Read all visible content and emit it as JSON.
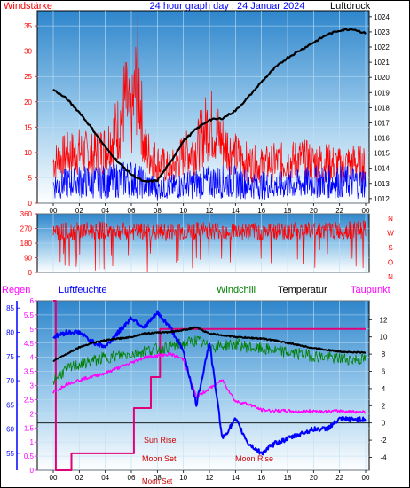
{
  "header": {
    "left": "Windstärke",
    "center": "24 hour graph day : 24 Januar 2024",
    "right": "Luftdruck"
  },
  "colors": {
    "frame": "#000000",
    "label_red": "#ff0000",
    "label_blue": "#0000ff",
    "label_magenta": "#ff00ff",
    "label_green": "#008000",
    "sky_top": "#3a8fd0",
    "sky_bottom": "#ffffff"
  },
  "legend_bottom": {
    "regen": "Regen",
    "luftfeuchte": "Luftfeuchte",
    "windchill": "Windchill",
    "temperatur": "Temperatur",
    "taupunkt": "Taupunkt"
  },
  "direction_letters": [
    "N",
    "W",
    "S",
    "O",
    "N"
  ],
  "annotations": {
    "sun_rise": "Sun Rise",
    "moon_set": "Moon Set",
    "moon_rise": "Moon Rise",
    "moon_set_axis": "Moon Set"
  },
  "chart_data": [
    {
      "type": "line",
      "name": "wind-and-pressure",
      "x_ticks": [
        "00",
        "02",
        "04",
        "06",
        "08",
        "10",
        "12",
        "14",
        "16",
        "18",
        "20",
        "22",
        "00"
      ],
      "y_left_ticks": [
        0,
        5,
        10,
        15,
        20,
        25,
        30,
        35
      ],
      "y_left_range": [
        0,
        38
      ],
      "y_right_ticks": [
        1012,
        1013,
        1014,
        1015,
        1016,
        1017,
        1018,
        1019,
        1020,
        1021,
        1022,
        1023,
        1024
      ],
      "y_right_range": [
        1011.7,
        1024.4
      ],
      "pressure_x": [
        0,
        1,
        2,
        3,
        4,
        5,
        6,
        7,
        8,
        9,
        10,
        11,
        12,
        13,
        14,
        15,
        16,
        17,
        18,
        19,
        20,
        21,
        22,
        23,
        24
      ],
      "pressure": [
        1019.2,
        1018.6,
        1017.7,
        1016.6,
        1015.4,
        1014.4,
        1013.6,
        1013.1,
        1013.2,
        1014.4,
        1015.8,
        1016.6,
        1017.2,
        1017.3,
        1017.8,
        1018.7,
        1019.7,
        1020.6,
        1021.3,
        1021.8,
        1022.3,
        1022.8,
        1023.1,
        1023.2,
        1022.9
      ],
      "gust_x": [
        0,
        1,
        2,
        3,
        4,
        5,
        5.5,
        6,
        6.5,
        7,
        8,
        9,
        10,
        11,
        12,
        13,
        14,
        15,
        16,
        17,
        18,
        19,
        20,
        21,
        22,
        23,
        24
      ],
      "gust": [
        12,
        14,
        15,
        14,
        16,
        22,
        30,
        24,
        38,
        16,
        12,
        10,
        14,
        16,
        24,
        18,
        14,
        12,
        11,
        12,
        12,
        13,
        12,
        12,
        11,
        12,
        11
      ],
      "wind_x": [
        0,
        2,
        4,
        6,
        8,
        10,
        12,
        14,
        16,
        18,
        20,
        22,
        24
      ],
      "wind": [
        5,
        6,
        6,
        7,
        4,
        5,
        6,
        6,
        5,
        5,
        6,
        6,
        6
      ]
    },
    {
      "type": "scatter",
      "name": "wind-direction",
      "x_ticks": [
        "00",
        "02",
        "04",
        "06",
        "08",
        "10",
        "12",
        "14",
        "16",
        "18",
        "20",
        "22",
        "00"
      ],
      "y_ticks": [
        0,
        90,
        180,
        270,
        360
      ],
      "y_range": [
        0,
        360
      ],
      "x": [
        0,
        2,
        4,
        6,
        8,
        10,
        12,
        14,
        16,
        18,
        20,
        22,
        24
      ],
      "direction": [
        250,
        255,
        260,
        250,
        245,
        250,
        260,
        255,
        250,
        255,
        260,
        255,
        265
      ]
    },
    {
      "type": "line",
      "name": "temperature-humidity-rain",
      "x_ticks": [
        "00",
        "02",
        "04",
        "06",
        "08",
        "10",
        "12",
        "14",
        "16",
        "18",
        "20",
        "22",
        "00"
      ],
      "y_rain_ticks": [
        0,
        0.5,
        1,
        1.5,
        2,
        2.5,
        3,
        3.5,
        4,
        4.5,
        5,
        5.5,
        6
      ],
      "y_rain_range": [
        0,
        6
      ],
      "y_humidity_ticks": [
        55,
        60,
        65,
        70,
        75,
        80,
        85
      ],
      "y_humidity_range": [
        51.5,
        86.5
      ],
      "y_temp_ticks": [
        -4,
        -2,
        0,
        2,
        4,
        6,
        8,
        10,
        12
      ],
      "y_temp_range": [
        -5.5,
        14.2
      ],
      "x": [
        0,
        1,
        2,
        3,
        4,
        5,
        6,
        7,
        8,
        9,
        10,
        11,
        12,
        13,
        14,
        15,
        16,
        17,
        18,
        19,
        20,
        21,
        22,
        23,
        24
      ],
      "temperature": [
        7.2,
        8.0,
        8.8,
        9.3,
        9.6,
        9.8,
        10.0,
        10.4,
        10.5,
        10.6,
        10.8,
        11.1,
        10.4,
        10.2,
        10.0,
        9.9,
        9.8,
        9.6,
        9.3,
        9.0,
        8.7,
        8.5,
        8.3,
        8.2,
        8.2
      ],
      "windchill": [
        5.0,
        6.2,
        6.8,
        7.2,
        7.6,
        7.8,
        8.0,
        8.4,
        8.6,
        8.9,
        9.2,
        9.6,
        8.8,
        9.0,
        9.2,
        8.8,
        8.6,
        8.4,
        8.2,
        8.0,
        7.8,
        7.6,
        7.5,
        7.4,
        7.4
      ],
      "dewpoint": [
        3.5,
        4.5,
        5.0,
        5.4,
        5.8,
        6.4,
        7.0,
        7.6,
        7.8,
        8.0,
        7.4,
        3.0,
        4.0,
        5.0,
        2.5,
        2.2,
        1.5,
        1.4,
        1.4,
        1.3,
        1.4,
        1.3,
        1.4,
        1.3,
        1.3
      ],
      "humidity": [
        79,
        80,
        80,
        78,
        77,
        80,
        83,
        81,
        84,
        81,
        76,
        65,
        78,
        58,
        62,
        57,
        55,
        57,
        58,
        59,
        60,
        60,
        62,
        62,
        62
      ],
      "rain_x": [
        0,
        0.2,
        0.2,
        1.4,
        1.4,
        6.2,
        6.2,
        7.5,
        7.5,
        8.2,
        8.2,
        24
      ],
      "rain": [
        6,
        6,
        0,
        0,
        0.6,
        0.6,
        2.2,
        2.2,
        3.3,
        3.3,
        5.0,
        5.0
      ]
    }
  ]
}
